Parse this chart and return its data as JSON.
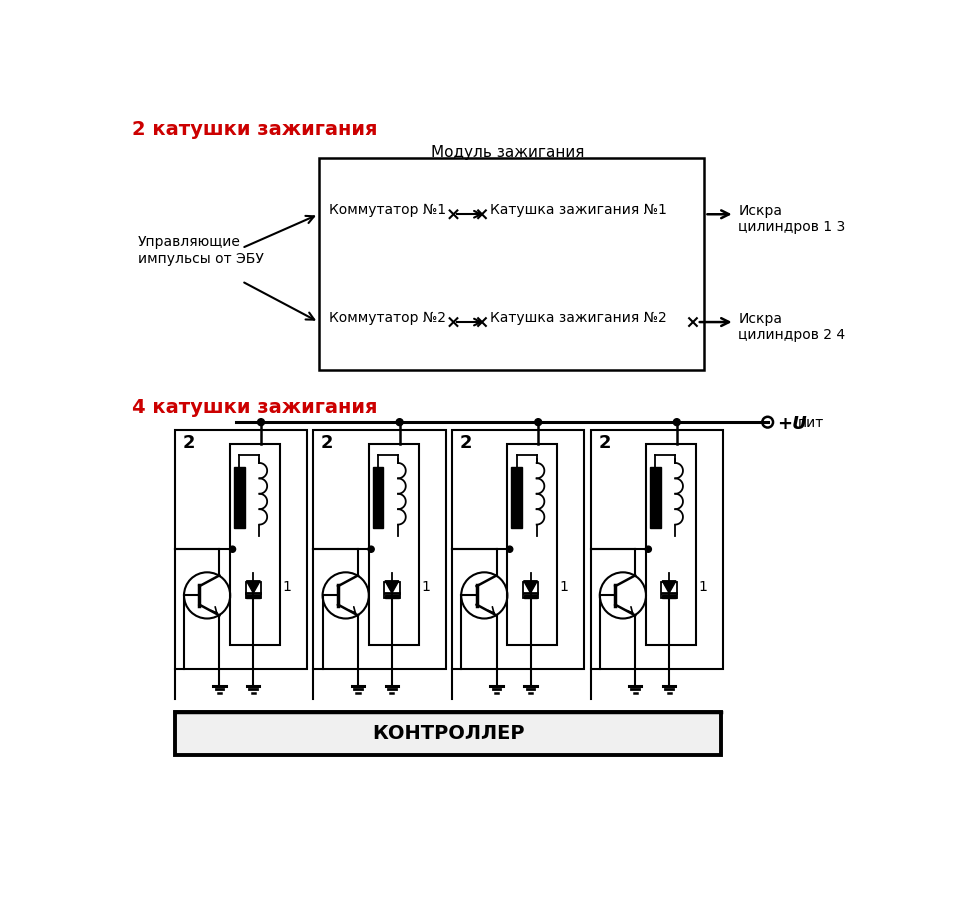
{
  "bg_color": "#ffffff",
  "title1": "2 катушки зажигания",
  "title2": "4 катушки зажигания",
  "title1_color": "#cc0000",
  "title2_color": "#cc0000",
  "module_title": "Модуль зажигания",
  "block1_label": "Коммутатор №1",
  "block2_label": "Катушка зажигания №1",
  "block3_label": "Коммутатор №2",
  "block4_label": "Катушка зажигания №2",
  "left_label": "Управляющие\nимпульсы от ЭБУ",
  "spark1": "Искра\nцилиндров 1 3",
  "spark2": "Искра\nцилиндров 2 4",
  "controller_label": "КОНТРОЛЛЕР",
  "upit_label": "пит"
}
